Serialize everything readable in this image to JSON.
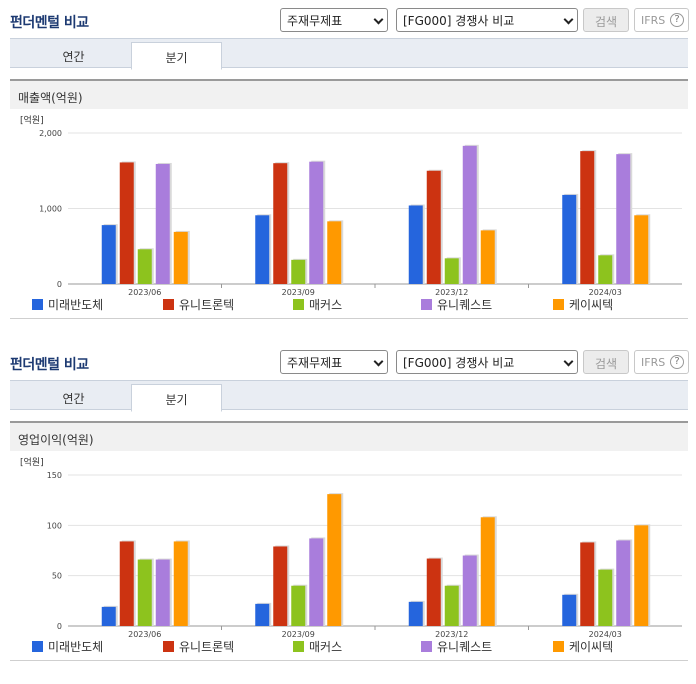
{
  "panels": [
    {
      "title": "펀더멘털 비교",
      "select_type": "주재무제표",
      "select_group": "[FG000] 경쟁사 비교",
      "search_label": "검색",
      "ifrs_label": "IFRS",
      "help_glyph": "?",
      "tabs": [
        {
          "label": "연간"
        },
        {
          "label": "분기"
        }
      ],
      "active_tab": "분기",
      "section_title": "매출액(억원)",
      "chart_data": {
        "type": "bar",
        "unit_label": "[억원]",
        "categories": [
          "2023/06",
          "2023/09",
          "2023/12",
          "2024/03"
        ],
        "ylim": [
          0,
          2000
        ],
        "yticks": [
          "0",
          "1,000",
          "2,000"
        ],
        "series": [
          {
            "name": "미래반도체",
            "color": "#2565dd",
            "values": [
              780,
              910,
              1040,
              1180
            ]
          },
          {
            "name": "유니트론텍",
            "color": "#cc3311",
            "values": [
              1610,
              1600,
              1500,
              1760
            ]
          },
          {
            "name": "매커스",
            "color": "#8dc31e",
            "values": [
              460,
              320,
              340,
              380
            ]
          },
          {
            "name": "유니퀘스트",
            "color": "#a97ddc",
            "values": [
              1590,
              1620,
              1830,
              1720
            ]
          },
          {
            "name": "케이씨텍",
            "color": "#ff9900",
            "values": [
              690,
              830,
              710,
              910
            ]
          }
        ]
      }
    },
    {
      "title": "펀더멘털 비교",
      "select_type": "주재무제표",
      "select_group": "[FG000] 경쟁사 비교",
      "search_label": "검색",
      "ifrs_label": "IFRS",
      "help_glyph": "?",
      "tabs": [
        {
          "label": "연간"
        },
        {
          "label": "분기"
        }
      ],
      "active_tab": "분기",
      "section_title": "영업이익(억원)",
      "chart_data": {
        "type": "bar",
        "unit_label": "[억원]",
        "categories": [
          "2023/06",
          "2023/09",
          "2023/12",
          "2024/03"
        ],
        "ylim": [
          0,
          150
        ],
        "yticks": [
          "0",
          "50",
          "100",
          "150"
        ],
        "series": [
          {
            "name": "미래반도체",
            "color": "#2565dd",
            "values": [
              19,
              22,
              24,
              31
            ]
          },
          {
            "name": "유니트론텍",
            "color": "#cc3311",
            "values": [
              84,
              79,
              67,
              83
            ]
          },
          {
            "name": "매커스",
            "color": "#8dc31e",
            "values": [
              66,
              40,
              40,
              56
            ]
          },
          {
            "name": "유니퀘스트",
            "color": "#a97ddc",
            "values": [
              66,
              87,
              70,
              85
            ]
          },
          {
            "name": "케이씨텍",
            "color": "#ff9900",
            "values": [
              84,
              131,
              108,
              100
            ]
          }
        ]
      }
    }
  ]
}
